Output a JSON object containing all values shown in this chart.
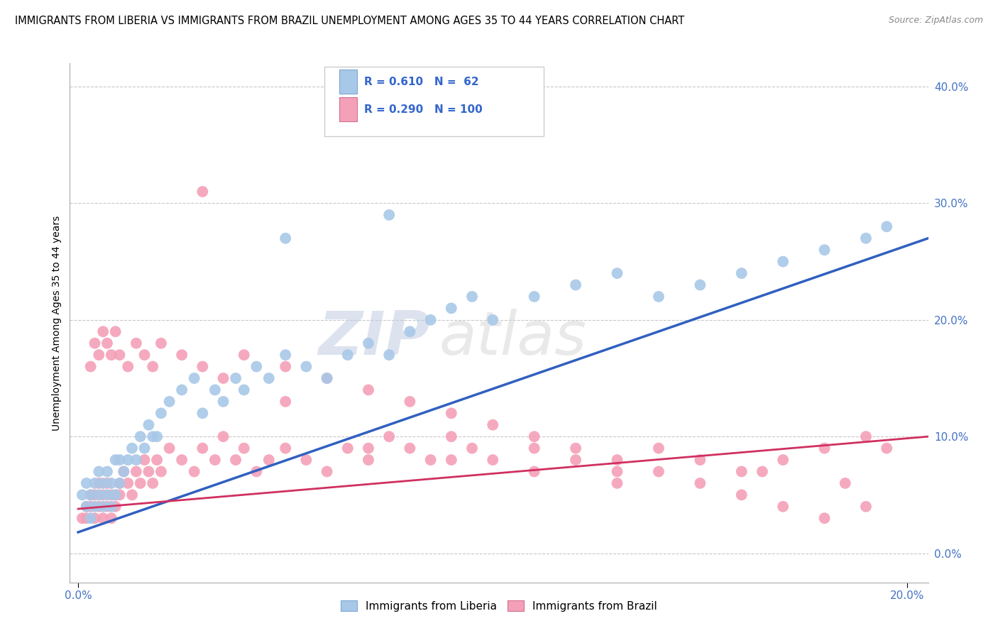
{
  "title": "IMMIGRANTS FROM LIBERIA VS IMMIGRANTS FROM BRAZIL UNEMPLOYMENT AMONG AGES 35 TO 44 YEARS CORRELATION CHART",
  "source": "Source: ZipAtlas.com",
  "ylabel_left": "Unemployment Among Ages 35 to 44 years",
  "watermark": "ZIPatlas",
  "series_liberia": {
    "label": "Immigrants from Liberia",
    "color": "#a8c8e8",
    "line_color": "#3060c0",
    "R": 0.61,
    "N": 62,
    "x": [
      0.001,
      0.002,
      0.002,
      0.003,
      0.003,
      0.004,
      0.004,
      0.005,
      0.005,
      0.006,
      0.006,
      0.007,
      0.007,
      0.008,
      0.008,
      0.009,
      0.009,
      0.01,
      0.01,
      0.011,
      0.012,
      0.013,
      0.014,
      0.015,
      0.016,
      0.017,
      0.018,
      0.019,
      0.02,
      0.022,
      0.025,
      0.028,
      0.03,
      0.033,
      0.035,
      0.038,
      0.04,
      0.043,
      0.046,
      0.05,
      0.055,
      0.06,
      0.065,
      0.07,
      0.075,
      0.08,
      0.085,
      0.09,
      0.095,
      0.1,
      0.11,
      0.12,
      0.13,
      0.14,
      0.15,
      0.16,
      0.17,
      0.18,
      0.19,
      0.195,
      0.05,
      0.075
    ],
    "y": [
      0.05,
      0.04,
      0.06,
      0.03,
      0.05,
      0.04,
      0.06,
      0.05,
      0.07,
      0.04,
      0.06,
      0.05,
      0.07,
      0.04,
      0.06,
      0.05,
      0.08,
      0.06,
      0.08,
      0.07,
      0.08,
      0.09,
      0.08,
      0.1,
      0.09,
      0.11,
      0.1,
      0.1,
      0.12,
      0.13,
      0.14,
      0.15,
      0.12,
      0.14,
      0.13,
      0.15,
      0.14,
      0.16,
      0.15,
      0.17,
      0.16,
      0.15,
      0.17,
      0.18,
      0.17,
      0.19,
      0.2,
      0.21,
      0.22,
      0.2,
      0.22,
      0.23,
      0.24,
      0.22,
      0.23,
      0.24,
      0.25,
      0.26,
      0.27,
      0.28,
      0.27,
      0.29
    ]
  },
  "series_brazil": {
    "label": "Immigrants from Brazil",
    "color": "#f4a0b8",
    "line_color": "#d03060",
    "R": 0.29,
    "N": 100,
    "x": [
      0.001,
      0.002,
      0.002,
      0.003,
      0.003,
      0.004,
      0.004,
      0.005,
      0.005,
      0.006,
      0.006,
      0.007,
      0.007,
      0.008,
      0.008,
      0.009,
      0.009,
      0.01,
      0.01,
      0.011,
      0.012,
      0.013,
      0.014,
      0.015,
      0.016,
      0.017,
      0.018,
      0.019,
      0.02,
      0.022,
      0.025,
      0.028,
      0.03,
      0.033,
      0.035,
      0.038,
      0.04,
      0.043,
      0.046,
      0.05,
      0.055,
      0.06,
      0.065,
      0.07,
      0.075,
      0.08,
      0.085,
      0.09,
      0.095,
      0.1,
      0.11,
      0.12,
      0.13,
      0.14,
      0.15,
      0.16,
      0.17,
      0.18,
      0.19,
      0.195,
      0.003,
      0.004,
      0.005,
      0.006,
      0.007,
      0.008,
      0.009,
      0.01,
      0.012,
      0.014,
      0.016,
      0.018,
      0.02,
      0.025,
      0.03,
      0.035,
      0.04,
      0.05,
      0.06,
      0.07,
      0.08,
      0.09,
      0.1,
      0.11,
      0.12,
      0.13,
      0.14,
      0.15,
      0.16,
      0.17,
      0.18,
      0.19,
      0.03,
      0.05,
      0.07,
      0.09,
      0.11,
      0.13,
      0.165,
      0.185
    ],
    "y": [
      0.03,
      0.04,
      0.03,
      0.05,
      0.04,
      0.03,
      0.05,
      0.04,
      0.06,
      0.03,
      0.05,
      0.04,
      0.06,
      0.05,
      0.03,
      0.05,
      0.04,
      0.06,
      0.05,
      0.07,
      0.06,
      0.05,
      0.07,
      0.06,
      0.08,
      0.07,
      0.06,
      0.08,
      0.07,
      0.09,
      0.08,
      0.07,
      0.09,
      0.08,
      0.1,
      0.08,
      0.09,
      0.07,
      0.08,
      0.09,
      0.08,
      0.07,
      0.09,
      0.08,
      0.1,
      0.09,
      0.08,
      0.1,
      0.09,
      0.08,
      0.09,
      0.08,
      0.07,
      0.09,
      0.08,
      0.07,
      0.08,
      0.09,
      0.1,
      0.09,
      0.16,
      0.18,
      0.17,
      0.19,
      0.18,
      0.17,
      0.19,
      0.17,
      0.16,
      0.18,
      0.17,
      0.16,
      0.18,
      0.17,
      0.16,
      0.15,
      0.17,
      0.16,
      0.15,
      0.14,
      0.13,
      0.12,
      0.11,
      0.1,
      0.09,
      0.08,
      0.07,
      0.06,
      0.05,
      0.04,
      0.03,
      0.04,
      0.31,
      0.13,
      0.09,
      0.08,
      0.07,
      0.06,
      0.07,
      0.06
    ]
  },
  "xlim": [
    -0.002,
    0.205
  ],
  "ylim": [
    -0.025,
    0.42
  ],
  "xticks": [
    0.0,
    0.2
  ],
  "yticks": [
    0.0,
    0.1,
    0.2,
    0.3,
    0.4
  ],
  "background_color": "#ffffff",
  "grid_color": "#c8c8c8",
  "title_fontsize": 10.5,
  "axis_fontsize": 10,
  "watermark_color": "#d8d8d8"
}
